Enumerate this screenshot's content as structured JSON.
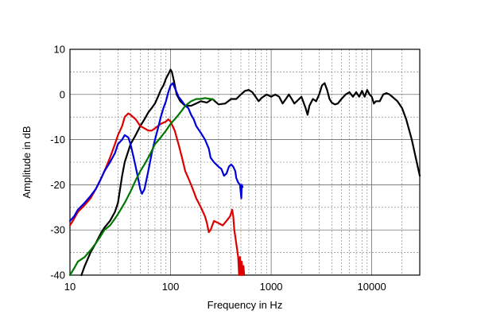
{
  "chart_data": {
    "type": "line",
    "title": "",
    "xlabel": "Frequency in Hz",
    "ylabel": "Amplitude in dB",
    "xscale": "log",
    "xlim": [
      10,
      30000
    ],
    "ylim": [
      -40,
      10
    ],
    "x_ticks": [
      10,
      100,
      1000,
      10000
    ],
    "x_tick_labels": [
      "10",
      "100",
      "1000",
      "10000"
    ],
    "y_ticks": [
      10,
      0,
      -10,
      -20,
      -30,
      -40
    ],
    "y_tick_labels": [
      "10",
      "0",
      "-10",
      "-20",
      "-30",
      "-40"
    ],
    "grid": true,
    "legend": "none",
    "series": [
      {
        "color": "#000000",
        "points": [
          [
            13,
            -40
          ],
          [
            14,
            -38
          ],
          [
            16,
            -35
          ],
          [
            18,
            -33
          ],
          [
            20,
            -31
          ],
          [
            22,
            -29.5
          ],
          [
            25,
            -28
          ],
          [
            28,
            -26
          ],
          [
            30,
            -24
          ],
          [
            33,
            -18
          ],
          [
            35,
            -15
          ],
          [
            40,
            -11
          ],
          [
            45,
            -9
          ],
          [
            50,
            -7
          ],
          [
            55,
            -5.5
          ],
          [
            60,
            -4
          ],
          [
            65,
            -3
          ],
          [
            70,
            -2
          ],
          [
            75,
            -0.5
          ],
          [
            80,
            1
          ],
          [
            85,
            2
          ],
          [
            90,
            3.5
          ],
          [
            95,
            4.5
          ],
          [
            100,
            5.5
          ],
          [
            103,
            5
          ],
          [
            108,
            3
          ],
          [
            115,
            0
          ],
          [
            125,
            -1.5
          ],
          [
            140,
            -2.5
          ],
          [
            160,
            -2.5
          ],
          [
            180,
            -2
          ],
          [
            200,
            -1.5
          ],
          [
            230,
            -1.8
          ],
          [
            260,
            -1
          ],
          [
            300,
            -2.2
          ],
          [
            350,
            -2
          ],
          [
            400,
            -1
          ],
          [
            450,
            -1
          ],
          [
            500,
            0
          ],
          [
            550,
            0.8
          ],
          [
            600,
            1
          ],
          [
            650,
            0.5
          ],
          [
            700,
            -0.5
          ],
          [
            750,
            -1.5
          ],
          [
            800,
            -0.8
          ],
          [
            900,
            0
          ],
          [
            1000,
            -0.5
          ],
          [
            1100,
            0
          ],
          [
            1200,
            -0.5
          ],
          [
            1300,
            -2
          ],
          [
            1400,
            -1
          ],
          [
            1500,
            0
          ],
          [
            1600,
            -1
          ],
          [
            1700,
            -2
          ],
          [
            1800,
            -1.5
          ],
          [
            2000,
            -0.5
          ],
          [
            2200,
            -3
          ],
          [
            2300,
            -4.5
          ],
          [
            2400,
            -2.5
          ],
          [
            2600,
            -1
          ],
          [
            2800,
            -1.5
          ],
          [
            3000,
            0
          ],
          [
            3200,
            2
          ],
          [
            3400,
            2.5
          ],
          [
            3600,
            1
          ],
          [
            3800,
            -1
          ],
          [
            4000,
            -1.8
          ],
          [
            4300,
            -2.2
          ],
          [
            4600,
            -2
          ],
          [
            5000,
            -1
          ],
          [
            5500,
            0
          ],
          [
            6000,
            0.5
          ],
          [
            6500,
            -0.5
          ],
          [
            7000,
            0.5
          ],
          [
            7500,
            -0.5
          ],
          [
            8000,
            0.8
          ],
          [
            8500,
            -0.5
          ],
          [
            9000,
            1
          ],
          [
            9500,
            0
          ],
          [
            10000,
            -0.5
          ],
          [
            10500,
            -2
          ],
          [
            11000,
            -1.5
          ],
          [
            12000,
            -1.5
          ],
          [
            13000,
            0
          ],
          [
            14000,
            0.3
          ],
          [
            15000,
            0
          ],
          [
            16000,
            -0.5
          ],
          [
            18000,
            -1.5
          ],
          [
            20000,
            -3
          ],
          [
            22000,
            -5.5
          ],
          [
            25000,
            -10
          ],
          [
            28000,
            -15
          ],
          [
            30000,
            -18
          ]
        ]
      },
      {
        "color": "#dd0000",
        "points": [
          [
            10,
            -29
          ],
          [
            11,
            -27.5
          ],
          [
            12,
            -26
          ],
          [
            14,
            -24.5
          ],
          [
            16,
            -23
          ],
          [
            18,
            -21
          ],
          [
            20,
            -19
          ],
          [
            22,
            -17
          ],
          [
            25,
            -14
          ],
          [
            28,
            -11
          ],
          [
            30,
            -9
          ],
          [
            33,
            -7
          ],
          [
            35,
            -5
          ],
          [
            38,
            -4.2
          ],
          [
            40,
            -4.5
          ],
          [
            45,
            -5.5
          ],
          [
            50,
            -7
          ],
          [
            55,
            -7.5
          ],
          [
            60,
            -8
          ],
          [
            65,
            -8
          ],
          [
            70,
            -7.5
          ],
          [
            80,
            -6.5
          ],
          [
            90,
            -6
          ],
          [
            95,
            -5.5
          ],
          [
            100,
            -6
          ],
          [
            110,
            -8
          ],
          [
            120,
            -11
          ],
          [
            130,
            -14
          ],
          [
            140,
            -17
          ],
          [
            150,
            -18.5
          ],
          [
            160,
            -20
          ],
          [
            170,
            -21.5
          ],
          [
            180,
            -23
          ],
          [
            190,
            -24
          ],
          [
            200,
            -25
          ],
          [
            210,
            -26
          ],
          [
            220,
            -27
          ],
          [
            230,
            -28.5
          ],
          [
            240,
            -30.5
          ],
          [
            250,
            -30
          ],
          [
            270,
            -28
          ],
          [
            300,
            -28.5
          ],
          [
            330,
            -29
          ],
          [
            360,
            -28
          ],
          [
            390,
            -27
          ],
          [
            410,
            -25.5
          ],
          [
            420,
            -27
          ],
          [
            430,
            -30
          ],
          [
            450,
            -33
          ],
          [
            470,
            -36
          ],
          [
            480,
            -40
          ],
          [
            490,
            -36
          ],
          [
            500,
            -40
          ],
          [
            510,
            -37
          ],
          [
            520,
            -40
          ],
          [
            530,
            -38
          ],
          [
            540,
            -40
          ]
        ]
      },
      {
        "color": "#0000dd",
        "points": [
          [
            10,
            -28
          ],
          [
            11,
            -27
          ],
          [
            12,
            -25.5
          ],
          [
            14,
            -24
          ],
          [
            16,
            -22.5
          ],
          [
            18,
            -21
          ],
          [
            20,
            -19
          ],
          [
            22,
            -17
          ],
          [
            25,
            -15
          ],
          [
            28,
            -13
          ],
          [
            30,
            -11
          ],
          [
            33,
            -10
          ],
          [
            35,
            -9
          ],
          [
            38,
            -9.5
          ],
          [
            40,
            -11
          ],
          [
            43,
            -14
          ],
          [
            45,
            -16
          ],
          [
            48,
            -19
          ],
          [
            50,
            -21
          ],
          [
            52,
            -22
          ],
          [
            55,
            -21
          ],
          [
            60,
            -17
          ],
          [
            65,
            -13
          ],
          [
            70,
            -10
          ],
          [
            75,
            -7.5
          ],
          [
            80,
            -5
          ],
          [
            85,
            -3
          ],
          [
            90,
            -1.5
          ],
          [
            95,
            0.5
          ],
          [
            100,
            2
          ],
          [
            105,
            2.5
          ],
          [
            110,
            1.5
          ],
          [
            120,
            -0.5
          ],
          [
            130,
            -1.5
          ],
          [
            140,
            -2.5
          ],
          [
            150,
            -3
          ],
          [
            160,
            -4.5
          ],
          [
            170,
            -5.5
          ],
          [
            180,
            -7
          ],
          [
            200,
            -8.5
          ],
          [
            220,
            -10
          ],
          [
            240,
            -12
          ],
          [
            250,
            -14
          ],
          [
            270,
            -15
          ],
          [
            300,
            -16
          ],
          [
            320,
            -16.5
          ],
          [
            340,
            -18
          ],
          [
            360,
            -17.5
          ],
          [
            380,
            -16
          ],
          [
            400,
            -15.5
          ],
          [
            420,
            -16
          ],
          [
            440,
            -17
          ],
          [
            450,
            -18.5
          ],
          [
            470,
            -19.5
          ],
          [
            490,
            -20
          ],
          [
            500,
            -22
          ],
          [
            505,
            -23
          ],
          [
            510,
            -20
          ],
          [
            520,
            -20.5
          ]
        ]
      },
      {
        "color": "#007700",
        "points": [
          [
            10,
            -40
          ],
          [
            11,
            -38.5
          ],
          [
            12,
            -37
          ],
          [
            14,
            -36
          ],
          [
            16,
            -34.5
          ],
          [
            18,
            -33
          ],
          [
            20,
            -31.5
          ],
          [
            22,
            -30
          ],
          [
            25,
            -29
          ],
          [
            28,
            -27.5
          ],
          [
            30,
            -26.5
          ],
          [
            35,
            -24
          ],
          [
            40,
            -21.5
          ],
          [
            45,
            -19
          ],
          [
            50,
            -17
          ],
          [
            55,
            -15.5
          ],
          [
            60,
            -14
          ],
          [
            65,
            -12.5
          ],
          [
            70,
            -11
          ],
          [
            80,
            -9.5
          ],
          [
            90,
            -8
          ],
          [
            100,
            -6.5
          ],
          [
            110,
            -5.5
          ],
          [
            120,
            -4.5
          ],
          [
            130,
            -3.5
          ],
          [
            140,
            -2.5
          ],
          [
            150,
            -2
          ],
          [
            160,
            -1.5
          ],
          [
            180,
            -1
          ],
          [
            200,
            -1
          ],
          [
            220,
            -0.8
          ],
          [
            250,
            -1
          ],
          [
            270,
            -1.2
          ]
        ]
      }
    ]
  }
}
